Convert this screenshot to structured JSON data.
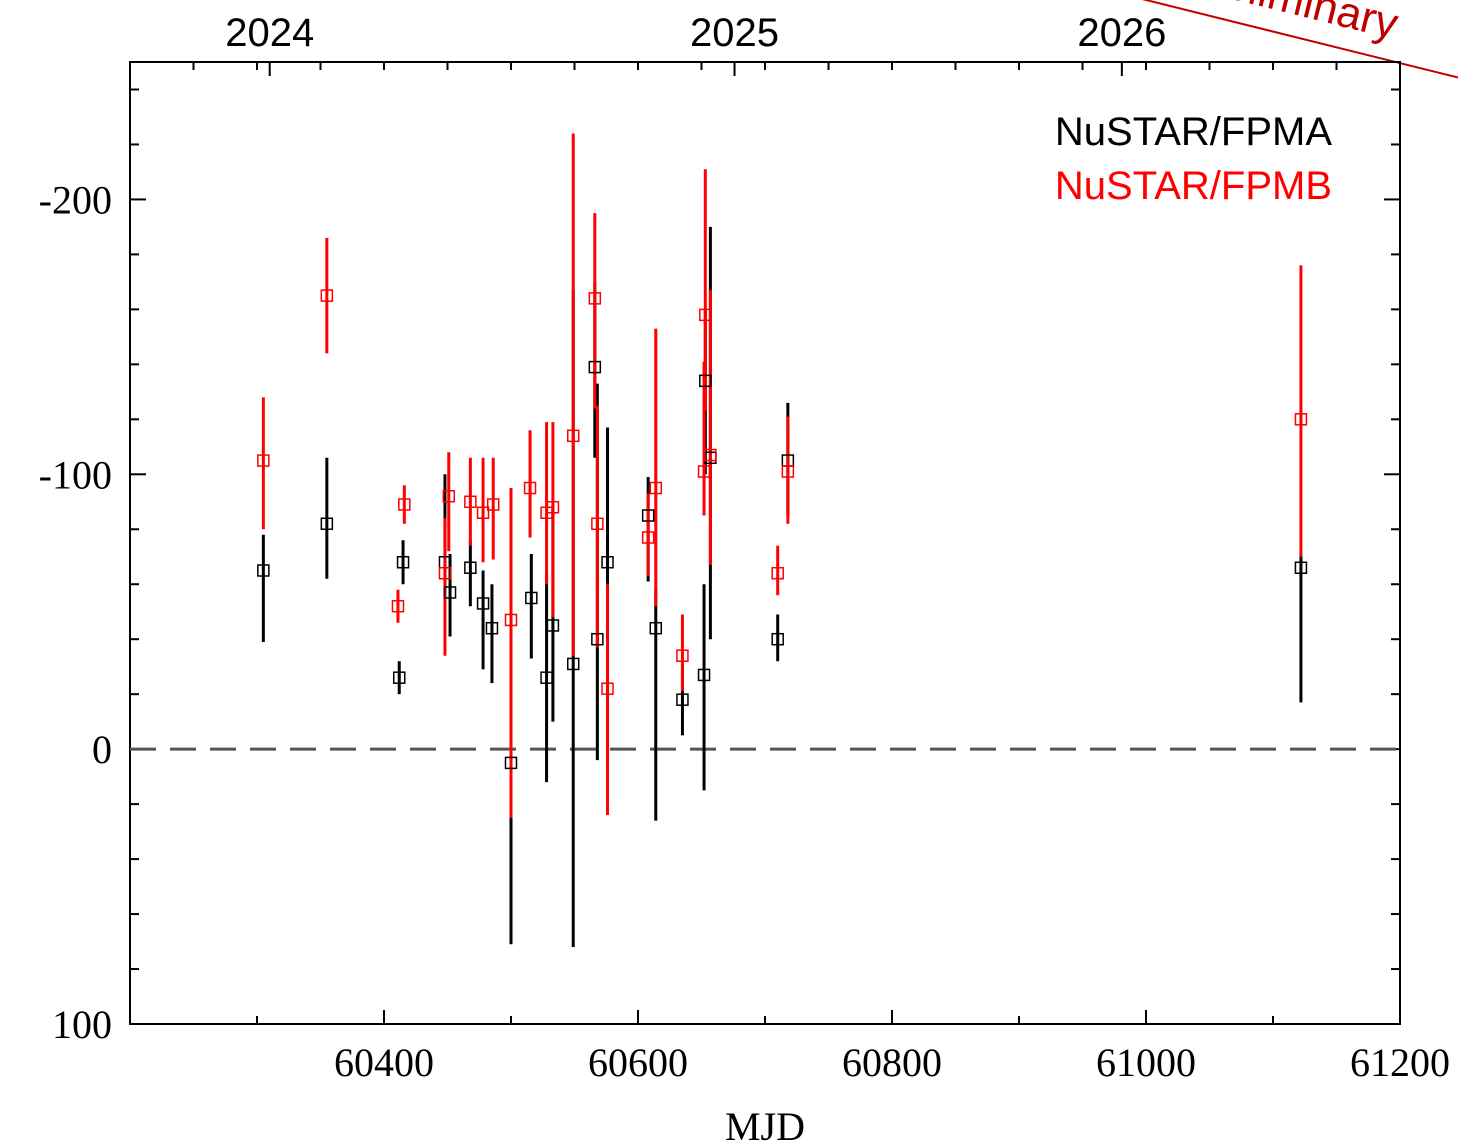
{
  "chart_data": {
    "type": "scatter",
    "title": "",
    "xlabel": "MJD",
    "ylabel": "",
    "xlim": [
      60200,
      61200
    ],
    "ylim": [
      100,
      -250
    ],
    "y_inverted": true,
    "grid": false,
    "legend_position": "top-right",
    "watermark_text": "Preliminary",
    "x_ticks": [
      {
        "value": 60400,
        "label": "60400"
      },
      {
        "value": 60600,
        "label": "60600"
      },
      {
        "value": 60800,
        "label": "60800"
      },
      {
        "value": 61000,
        "label": "61000"
      },
      {
        "value": 61200,
        "label": "61200"
      }
    ],
    "y_ticks": [
      {
        "value": -200,
        "label": "-200"
      },
      {
        "value": -100,
        "label": "-100"
      },
      {
        "value": 0,
        "label": "0"
      },
      {
        "value": 100,
        "label": "100"
      }
    ],
    "top_axis_ticks": [
      {
        "value": 60310,
        "label": "2024"
      },
      {
        "value": 60676,
        "label": "2025"
      },
      {
        "value": 60981,
        "label": "2026"
      }
    ],
    "reference_line": {
      "y": 0,
      "style": "dashed",
      "color": "#555555"
    },
    "series": [
      {
        "name": "NuSTAR/FPMA",
        "color": "#000000",
        "points": [
          {
            "x": 60305,
            "y": -65,
            "err_low": 26,
            "err_high": 13
          },
          {
            "x": 60355,
            "y": -82,
            "err_low": 20,
            "err_high": 24
          },
          {
            "x": 60412,
            "y": -26,
            "err_low": 6,
            "err_high": 6
          },
          {
            "x": 60415,
            "y": -68,
            "err_low": 8,
            "err_high": 8
          },
          {
            "x": 60448,
            "y": -68,
            "err_low": 10,
            "err_high": 32
          },
          {
            "x": 60452,
            "y": -57,
            "err_low": 16,
            "err_high": 14
          },
          {
            "x": 60468,
            "y": -66,
            "err_low": 14,
            "err_high": 10
          },
          {
            "x": 60478,
            "y": -53,
            "err_low": 24,
            "err_high": 12
          },
          {
            "x": 60485,
            "y": -44,
            "err_low": 20,
            "err_high": 16
          },
          {
            "x": 60500,
            "y": 5,
            "err_low": 66,
            "err_high": 30
          },
          {
            "x": 60516,
            "y": -55,
            "err_low": 22,
            "err_high": 16
          },
          {
            "x": 60528,
            "y": -26,
            "err_low": 38,
            "err_high": 38
          },
          {
            "x": 60533,
            "y": -45,
            "err_low": 35,
            "err_high": 43
          },
          {
            "x": 60549,
            "y": -31,
            "err_low": 103,
            "err_high": 136
          },
          {
            "x": 60566,
            "y": -139,
            "err_low": 33,
            "err_high": 31
          },
          {
            "x": 60568,
            "y": -40,
            "err_low": 44,
            "err_high": 93
          },
          {
            "x": 60576,
            "y": -68,
            "err_low": 74,
            "err_high": 49
          },
          {
            "x": 60608,
            "y": -85,
            "err_low": 24,
            "err_high": 14
          },
          {
            "x": 60614,
            "y": -44,
            "err_low": 70,
            "err_high": 14
          },
          {
            "x": 60635,
            "y": -18,
            "err_low": 13,
            "err_high": 13
          },
          {
            "x": 60652,
            "y": -27,
            "err_low": 42,
            "err_high": 33
          },
          {
            "x": 60653,
            "y": -134,
            "err_low": 34,
            "err_high": 26
          },
          {
            "x": 60657,
            "y": -106,
            "err_low": 66,
            "err_high": 84
          },
          {
            "x": 60710,
            "y": -40,
            "err_low": 8,
            "err_high": 9
          },
          {
            "x": 60718,
            "y": -105,
            "err_low": 20,
            "err_high": 21
          },
          {
            "x": 61122,
            "y": -66,
            "err_low": 49,
            "err_high": 5
          }
        ]
      },
      {
        "name": "NuSTAR/FPMB",
        "color": "#ff0000",
        "points": [
          {
            "x": 60305,
            "y": -105,
            "err_low": 25,
            "err_high": 23
          },
          {
            "x": 60355,
            "y": -165,
            "err_low": 21,
            "err_high": 21
          },
          {
            "x": 60411,
            "y": -52,
            "err_low": 6,
            "err_high": 6
          },
          {
            "x": 60416,
            "y": -89,
            "err_low": 7,
            "err_high": 7
          },
          {
            "x": 60448,
            "y": -64,
            "err_low": 30,
            "err_high": 20
          },
          {
            "x": 60451,
            "y": -92,
            "err_low": 20,
            "err_high": 16
          },
          {
            "x": 60468,
            "y": -90,
            "err_low": 16,
            "err_high": 16
          },
          {
            "x": 60478,
            "y": -86,
            "err_low": 18,
            "err_high": 20
          },
          {
            "x": 60486,
            "y": -89,
            "err_low": 20,
            "err_high": 17
          },
          {
            "x": 60500,
            "y": -47,
            "err_low": 72,
            "err_high": 48
          },
          {
            "x": 60515,
            "y": -95,
            "err_low": 18,
            "err_high": 21
          },
          {
            "x": 60528,
            "y": -86,
            "err_low": 26,
            "err_high": 33
          },
          {
            "x": 60533,
            "y": -88,
            "err_low": 40,
            "err_high": 31
          },
          {
            "x": 60549,
            "y": -114,
            "err_low": 80,
            "err_high": 110
          },
          {
            "x": 60566,
            "y": -164,
            "err_low": 40,
            "err_high": 31
          },
          {
            "x": 60568,
            "y": -82,
            "err_low": 45,
            "err_high": 43
          },
          {
            "x": 60576,
            "y": -22,
            "err_low": 46,
            "err_high": 38
          },
          {
            "x": 60608,
            "y": -77,
            "err_low": 14,
            "err_high": 16
          },
          {
            "x": 60614,
            "y": -95,
            "err_low": 43,
            "err_high": 58
          },
          {
            "x": 60635,
            "y": -34,
            "err_low": 13,
            "err_high": 15
          },
          {
            "x": 60652,
            "y": -101,
            "err_low": 16,
            "err_high": 40
          },
          {
            "x": 60653,
            "y": -158,
            "err_low": 35,
            "err_high": 53
          },
          {
            "x": 60657,
            "y": -107,
            "err_low": 40,
            "err_high": 60
          },
          {
            "x": 60710,
            "y": -64,
            "err_low": 8,
            "err_high": 10
          },
          {
            "x": 60718,
            "y": -101,
            "err_low": 19,
            "err_high": 20
          },
          {
            "x": 61122,
            "y": -120,
            "err_low": 50,
            "err_high": 56
          }
        ]
      }
    ]
  }
}
